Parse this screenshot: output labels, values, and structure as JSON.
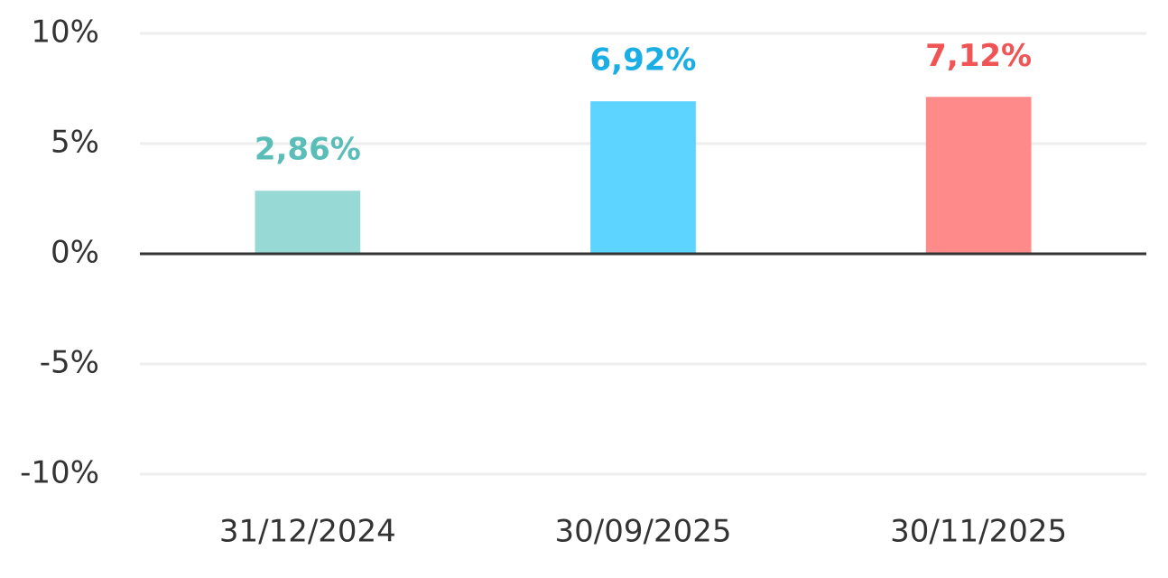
{
  "chart_data": {
    "type": "bar",
    "categories": [
      "31/12/2024",
      "30/09/2025",
      "30/11/2025"
    ],
    "values": [
      2.86,
      6.92,
      7.12
    ],
    "value_labels": [
      "2,86%",
      "6,92%",
      "7,12%"
    ],
    "colors": [
      "#96d9d5",
      "#5dd3ff",
      "#ff8a8a"
    ],
    "label_colors": [
      "#5bbdb8",
      "#1aaee5",
      "#f05454"
    ],
    "ylim": [
      -10,
      10
    ],
    "yticks": [
      {
        "value": 10,
        "label": "10%"
      },
      {
        "value": 5,
        "label": "5%"
      },
      {
        "value": 0,
        "label": "0%"
      },
      {
        "value": -5,
        "label": "-5%"
      },
      {
        "value": -10,
        "label": "-10%"
      }
    ],
    "grid": true
  }
}
